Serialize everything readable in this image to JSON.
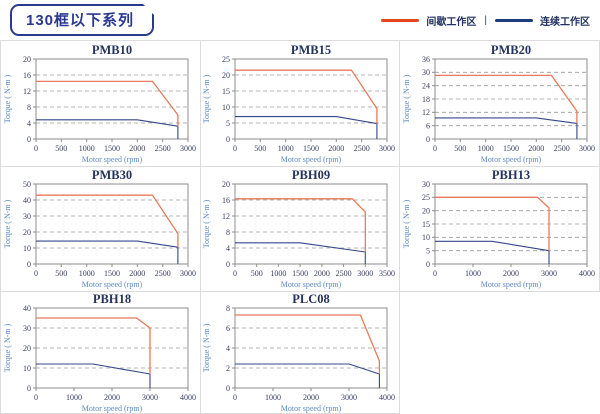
{
  "header": {
    "title": "130框以下系列",
    "legend": [
      {
        "name": "intermittent",
        "label": "间歇工作区",
        "color": "#e4451c"
      },
      {
        "name": "continuous",
        "label": "连续工作区",
        "color": "#1f3d7c"
      }
    ],
    "legend_separator": "|"
  },
  "colors": {
    "accent_navy": "#2b3990",
    "frame": "#8c8c8c",
    "grid": "#9c9c9c",
    "tick_text": "#3a4060",
    "title_text": "#26335c",
    "axis_label": "#5b8ac5",
    "cell_border": "#dcdcdc",
    "line_red": "#e8795c",
    "line_blue": "#35488a"
  },
  "chart_data": [
    {
      "type": "line",
      "title": "PMB10",
      "xlabel": "Motor speed (rpm)",
      "ylabel": "Torque ( N-m )",
      "xlim": [
        0,
        3000
      ],
      "xstep": 500,
      "ylim": [
        0,
        20
      ],
      "ystep": 4,
      "grid": "horizontal-dashed",
      "legend_position": "none",
      "series": [
        {
          "name": "间歇工作区",
          "color": "#e8795c",
          "width": 1.3,
          "points": [
            [
              0,
              14.4
            ],
            [
              2300,
              14.4
            ],
            [
              2800,
              6
            ],
            [
              2800,
              3.2
            ]
          ]
        },
        {
          "name": "连续工作区",
          "color": "#35488a",
          "width": 1.1,
          "points": [
            [
              0,
              4.8
            ],
            [
              2000,
              4.8
            ],
            [
              2800,
              3.2
            ],
            [
              2800,
              0
            ]
          ]
        }
      ]
    },
    {
      "type": "line",
      "title": "PMB15",
      "xlabel": "Motor speed (rpm)",
      "ylabel": "Torque ( N-m )",
      "xlim": [
        0,
        3000
      ],
      "xstep": 500,
      "ylim": [
        0,
        25
      ],
      "ystep": 5,
      "grid": "horizontal-dashed",
      "legend_position": "none",
      "series": [
        {
          "name": "间歇工作区",
          "color": "#e8795c",
          "width": 1.3,
          "points": [
            [
              0,
              21.5
            ],
            [
              2300,
              21.5
            ],
            [
              2800,
              9.5
            ],
            [
              2800,
              4.8
            ]
          ]
        },
        {
          "name": "连续工作区",
          "color": "#35488a",
          "width": 1.1,
          "points": [
            [
              0,
              7
            ],
            [
              2000,
              7
            ],
            [
              2800,
              4.8
            ],
            [
              2800,
              0
            ]
          ]
        }
      ]
    },
    {
      "type": "line",
      "title": "PMB20",
      "xlabel": "Motor speed (rpm)",
      "ylabel": "Torque ( N-m )",
      "xlim": [
        0,
        3000
      ],
      "xstep": 500,
      "ylim": [
        0,
        36
      ],
      "ystep": 6,
      "grid": "horizontal-dashed",
      "legend_position": "none",
      "series": [
        {
          "name": "间歇工作区",
          "color": "#e8795c",
          "width": 1.3,
          "points": [
            [
              0,
              28.6
            ],
            [
              2300,
              28.6
            ],
            [
              2800,
              12.5
            ],
            [
              2800,
              7
            ]
          ]
        },
        {
          "name": "连续工作区",
          "color": "#35488a",
          "width": 1.1,
          "points": [
            [
              0,
              9.5
            ],
            [
              2000,
              9.5
            ],
            [
              2800,
              7
            ],
            [
              2800,
              0
            ]
          ]
        }
      ]
    },
    {
      "type": "line",
      "title": "PMB30",
      "xlabel": "Motor speed (rpm)",
      "ylabel": "Torque ( N-m )",
      "xlim": [
        0,
        3000
      ],
      "xstep": 500,
      "ylim": [
        0,
        50
      ],
      "ystep": 10,
      "grid": "horizontal-dashed",
      "legend_position": "none",
      "series": [
        {
          "name": "间歇工作区",
          "color": "#e8795c",
          "width": 1.3,
          "points": [
            [
              0,
              43
            ],
            [
              2300,
              43
            ],
            [
              2800,
              19
            ],
            [
              2800,
              10.5
            ]
          ]
        },
        {
          "name": "连续工作区",
          "color": "#35488a",
          "width": 1.1,
          "points": [
            [
              0,
              14.3
            ],
            [
              2000,
              14.3
            ],
            [
              2800,
              10.5
            ],
            [
              2800,
              0
            ]
          ]
        }
      ]
    },
    {
      "type": "line",
      "title": "PBH09",
      "xlabel": "Motor speed (rpm)",
      "ylabel": "Torque ( N-m )",
      "xlim": [
        0,
        3500
      ],
      "xstep": 500,
      "ylim": [
        0,
        20
      ],
      "ystep": 4,
      "grid": "horizontal-dashed",
      "legend_position": "none",
      "series": [
        {
          "name": "间歇工作区",
          "color": "#e8795c",
          "width": 1.3,
          "points": [
            [
              0,
              16.3
            ],
            [
              2700,
              16.3
            ],
            [
              3000,
              13
            ],
            [
              3000,
              3
            ]
          ]
        },
        {
          "name": "连续工作区",
          "color": "#35488a",
          "width": 1.1,
          "points": [
            [
              0,
              5.3
            ],
            [
              1500,
              5.3
            ],
            [
              3000,
              3
            ],
            [
              3000,
              0
            ]
          ]
        }
      ]
    },
    {
      "type": "line",
      "title": "PBH13",
      "xlabel": "Motor speed (rpm)",
      "ylabel": "Torque ( N-m )",
      "xlim": [
        0,
        4000
      ],
      "xstep": 1000,
      "ylim": [
        0,
        30
      ],
      "ystep": 5,
      "grid": "horizontal-dashed",
      "legend_position": "none",
      "series": [
        {
          "name": "间歇工作区",
          "color": "#e8795c",
          "width": 1.3,
          "points": [
            [
              0,
              25
            ],
            [
              2700,
              25
            ],
            [
              3000,
              21
            ],
            [
              3000,
              5
            ]
          ]
        },
        {
          "name": "连续工作区",
          "color": "#35488a",
          "width": 1.1,
          "points": [
            [
              0,
              8.5
            ],
            [
              1500,
              8.5
            ],
            [
              3000,
              5
            ],
            [
              3000,
              0
            ]
          ]
        }
      ]
    },
    {
      "type": "line",
      "title": "PBH18",
      "xlabel": "Motor speed (rpm)",
      "ylabel": "Torque ( N-m )",
      "xlim": [
        0,
        4000
      ],
      "xstep": 1000,
      "ylim": [
        0,
        40
      ],
      "ystep": 10,
      "grid": "horizontal-dashed",
      "legend_position": "none",
      "series": [
        {
          "name": "间歇工作区",
          "color": "#e8795c",
          "width": 1.3,
          "points": [
            [
              0,
              35
            ],
            [
              2650,
              35
            ],
            [
              3000,
              30
            ],
            [
              3000,
              7
            ]
          ]
        },
        {
          "name": "连续工作区",
          "color": "#35488a",
          "width": 1.1,
          "points": [
            [
              0,
              12
            ],
            [
              1500,
              12
            ],
            [
              3000,
              7
            ],
            [
              3000,
              0
            ]
          ]
        }
      ]
    },
    {
      "type": "line",
      "title": "PLC08",
      "xlabel": "Motor speed (rpm)",
      "ylabel": "Torque ( N-m )",
      "xlim": [
        0,
        4000
      ],
      "xstep": 1000,
      "ylim": [
        0,
        8
      ],
      "ystep": 2,
      "grid": "horizontal-dashed",
      "legend_position": "none",
      "series": [
        {
          "name": "间歇工作区",
          "color": "#e8795c",
          "width": 1.3,
          "points": [
            [
              0,
              7.3
            ],
            [
              3300,
              7.3
            ],
            [
              3800,
              2.7
            ],
            [
              3800,
              1.4
            ]
          ]
        },
        {
          "name": "连续工作区",
          "color": "#35488a",
          "width": 1.1,
          "points": [
            [
              0,
              2.4
            ],
            [
              3000,
              2.4
            ],
            [
              3800,
              1.4
            ],
            [
              3800,
              0
            ]
          ]
        }
      ]
    }
  ]
}
